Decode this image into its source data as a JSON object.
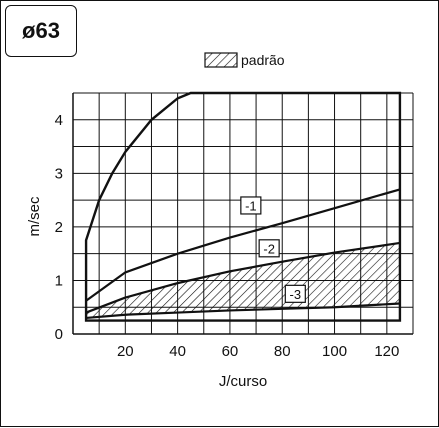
{
  "chart_data": {
    "type": "line",
    "title": "ø63",
    "xlabel": "J/curso",
    "ylabel": "m/sec",
    "xlim": [
      0,
      130
    ],
    "ylim": [
      0,
      4.5
    ],
    "x_ticks": [
      20,
      40,
      60,
      80,
      100,
      120
    ],
    "y_ticks": [
      0,
      1,
      2,
      3,
      4
    ],
    "grid": true,
    "legend": {
      "label": "padrão",
      "placement": "top-center",
      "swatch": "hatched"
    },
    "envelope": {
      "upper": [
        {
          "x": 5,
          "y": 1.75
        },
        {
          "x": 10,
          "y": 2.5
        },
        {
          "x": 15,
          "y": 3.0
        },
        {
          "x": 20,
          "y": 3.4
        },
        {
          "x": 30,
          "y": 4.0
        },
        {
          "x": 40,
          "y": 4.4
        },
        {
          "x": 45,
          "y": 4.5
        },
        {
          "x": 125,
          "y": 4.5
        }
      ],
      "lower": [
        {
          "x": 5,
          "y": 0.25
        },
        {
          "x": 125,
          "y": 0.25
        }
      ]
    },
    "series": [
      {
        "name": "-1",
        "x": [
          5,
          20,
          40,
          60,
          80,
          100,
          125
        ],
        "y": [
          0.62,
          1.15,
          1.5,
          1.8,
          2.07,
          2.35,
          2.7
        ]
      },
      {
        "name": "-2",
        "x": [
          5,
          20,
          40,
          60,
          80,
          100,
          125
        ],
        "y": [
          0.4,
          0.68,
          0.95,
          1.17,
          1.35,
          1.52,
          1.7
        ]
      },
      {
        "name": "-3",
        "x": [
          5,
          20,
          40,
          60,
          80,
          100,
          125
        ],
        "y": [
          0.3,
          0.36,
          0.4,
          0.44,
          0.47,
          0.5,
          0.57
        ]
      }
    ],
    "shaded_region": {
      "between": [
        "-2",
        "-3"
      ],
      "fill": "hatched"
    },
    "series_label_points": [
      {
        "name": "-1",
        "x": 68,
        "y": 2.4
      },
      {
        "name": "-2",
        "x": 75,
        "y": 1.6
      },
      {
        "name": "-3",
        "x": 85,
        "y": 0.75
      }
    ],
    "colors": {
      "line": "#111111",
      "grid": "#111111",
      "background": "#ffffff"
    }
  }
}
